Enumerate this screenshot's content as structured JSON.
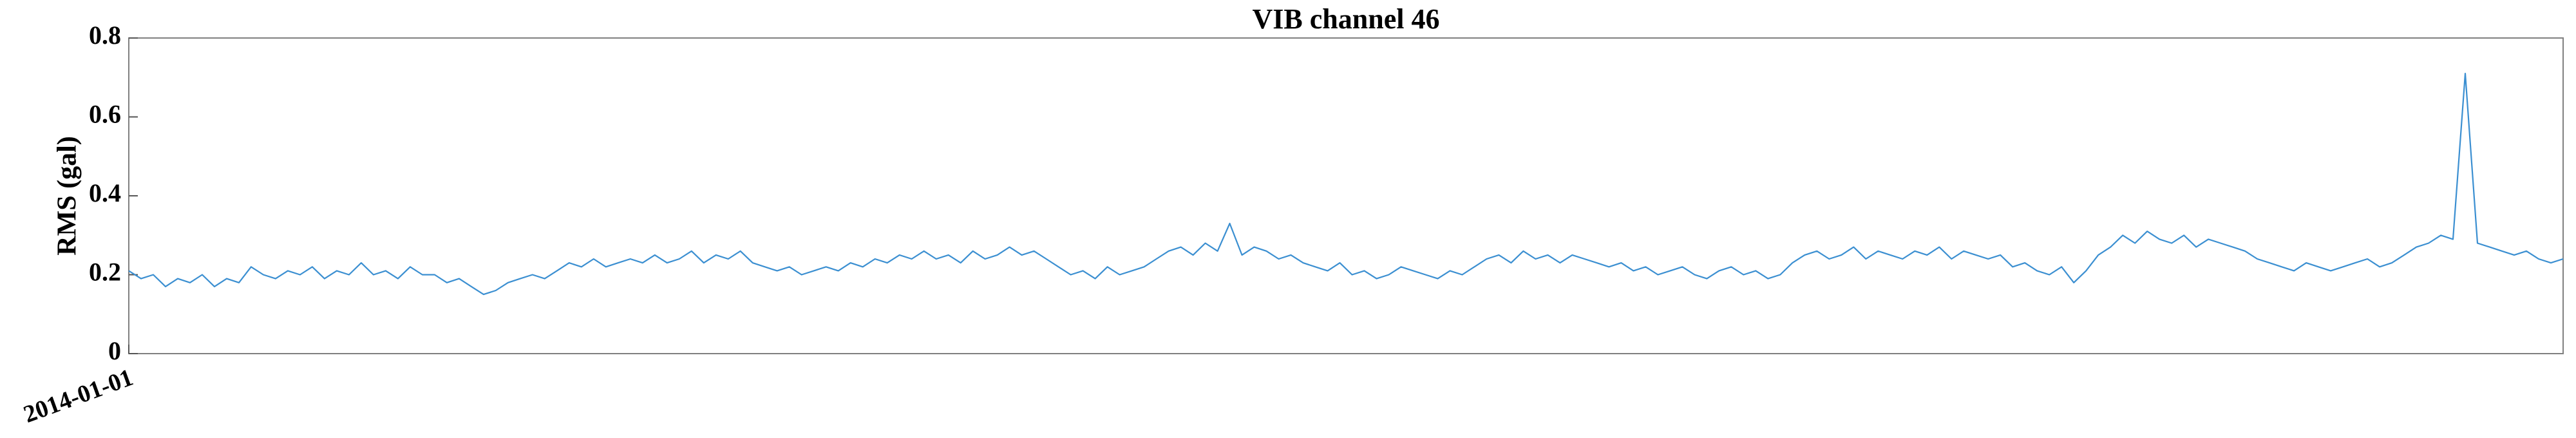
{
  "chart_data": {
    "type": "line",
    "title": "VIB channel 46",
    "y_label": "RMS (gal)",
    "color": "#3b8fd1",
    "ylim": [
      0,
      0.8
    ],
    "yticks": [
      0,
      0.2,
      0.4,
      0.6,
      0.8
    ],
    "categories": [
      "2014-01-01",
      null,
      null,
      null,
      null,
      null,
      null,
      null,
      null,
      null,
      null,
      null,
      null,
      null,
      null,
      null,
      null,
      null,
      null,
      null,
      null,
      null,
      null,
      null,
      null,
      null,
      null,
      null,
      null,
      null,
      null,
      null,
      null,
      null,
      null,
      null,
      null,
      null,
      null,
      null,
      null,
      null,
      null,
      null,
      null,
      null,
      null,
      null,
      null,
      null,
      null,
      null,
      null,
      null,
      null,
      null,
      null,
      null,
      null,
      null,
      null,
      null,
      null,
      null,
      null,
      null,
      null,
      null,
      null,
      null,
      null,
      null,
      null,
      null,
      null,
      null,
      null,
      null,
      null,
      null,
      null,
      null,
      null,
      null,
      null,
      null,
      null,
      null,
      null,
      null,
      null,
      null,
      null,
      null,
      null,
      null,
      null,
      null,
      null,
      null,
      null,
      null,
      null,
      null,
      null,
      null,
      null,
      null,
      null,
      null,
      null,
      null,
      null,
      null,
      null,
      null,
      null,
      null,
      null,
      null,
      null,
      null,
      null,
      null,
      null,
      null,
      null,
      null,
      null,
      null,
      null,
      null,
      null,
      null,
      null,
      null,
      null,
      null,
      null,
      null,
      null,
      null,
      null,
      null,
      null,
      null,
      null,
      null,
      null,
      null,
      null,
      null,
      null,
      null,
      null,
      null,
      null,
      null,
      null,
      null,
      null,
      null,
      null,
      null,
      null,
      null,
      null,
      null,
      null,
      null,
      null,
      null,
      null,
      null,
      null,
      null,
      null,
      null,
      null,
      null,
      null,
      null,
      null,
      null,
      null,
      null,
      null,
      null,
      null,
      null,
      null,
      null,
      null,
      null,
      null,
      null,
      null,
      null,
      null,
      null
    ],
    "values": [
      0.21,
      0.19,
      0.2,
      0.17,
      0.19,
      0.18,
      0.2,
      0.17,
      0.19,
      0.18,
      0.22,
      0.2,
      0.19,
      0.21,
      0.2,
      0.22,
      0.19,
      0.21,
      0.2,
      0.23,
      0.2,
      0.21,
      0.19,
      0.22,
      0.2,
      0.2,
      0.18,
      0.19,
      0.17,
      0.15,
      0.16,
      0.18,
      0.19,
      0.2,
      0.19,
      0.21,
      0.23,
      0.22,
      0.24,
      0.22,
      0.23,
      0.24,
      0.23,
      0.25,
      0.23,
      0.24,
      0.26,
      0.23,
      0.25,
      0.24,
      0.26,
      0.23,
      0.22,
      0.21,
      0.22,
      0.2,
      0.21,
      0.22,
      0.21,
      0.23,
      0.22,
      0.24,
      0.23,
      0.25,
      0.24,
      0.26,
      0.24,
      0.25,
      0.23,
      0.26,
      0.24,
      0.25,
      0.27,
      0.25,
      0.26,
      0.24,
      0.22,
      0.2,
      0.21,
      0.19,
      0.22,
      0.2,
      0.21,
      0.22,
      0.24,
      0.26,
      0.27,
      0.25,
      0.28,
      0.26,
      0.33,
      0.25,
      0.27,
      0.26,
      0.24,
      0.25,
      0.23,
      0.22,
      0.21,
      0.23,
      0.2,
      0.21,
      0.19,
      0.2,
      0.22,
      0.21,
      0.2,
      0.19,
      0.21,
      0.2,
      0.22,
      0.24,
      0.25,
      0.23,
      0.26,
      0.24,
      0.25,
      0.23,
      0.25,
      0.24,
      0.23,
      0.22,
      0.23,
      0.21,
      0.22,
      0.2,
      0.21,
      0.22,
      0.2,
      0.19,
      0.21,
      0.22,
      0.2,
      0.21,
      0.19,
      0.2,
      0.23,
      0.25,
      0.26,
      0.24,
      0.25,
      0.27,
      0.24,
      0.26,
      0.25,
      0.24,
      0.26,
      0.25,
      0.27,
      0.24,
      0.26,
      0.25,
      0.24,
      0.25,
      0.22,
      0.23,
      0.21,
      0.2,
      0.22,
      0.18,
      0.21,
      0.25,
      0.27,
      0.3,
      0.28,
      0.31,
      0.29,
      0.28,
      0.3,
      0.27,
      0.29,
      0.28,
      0.27,
      0.26,
      0.24,
      0.23,
      0.22,
      0.21,
      0.23,
      0.22,
      0.21,
      0.22,
      0.23,
      0.24,
      0.22,
      0.23,
      0.25,
      0.27,
      0.28,
      0.3,
      0.29,
      0.71,
      0.28,
      0.27,
      0.26,
      0.25,
      0.26,
      0.24,
      0.23,
      0.24
    ]
  }
}
